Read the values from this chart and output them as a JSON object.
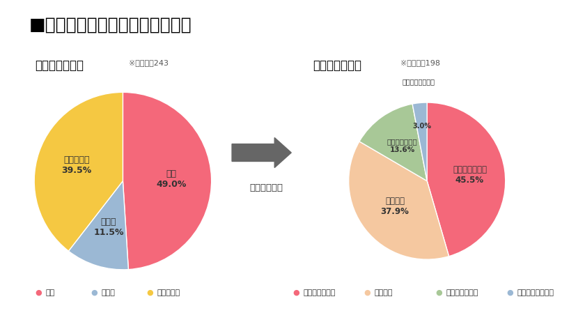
{
  "title": "■子どもを持ちたい？育てたい？",
  "title_fontsize": 18,
  "background_color": "#ffffff",
  "pre_title": "事前アンケート",
  "pre_subtitle": "※回答数：243",
  "pre_values": [
    49.0,
    11.5,
    39.5
  ],
  "pre_colors": [
    "#F4687A",
    "#9BB8D4",
    "#F5C842"
  ],
  "pre_text_labels": [
    "はい\n49.0%",
    "いいえ\n11.5%",
    "分からない\n39.5%"
  ],
  "pre_text_colors": [
    "#333333",
    "#333333",
    "#333333"
  ],
  "post_title": "事後アンケート",
  "post_subtitle": "※回答数：198",
  "post_values": [
    45.5,
    37.9,
    13.6,
    3.0
  ],
  "post_colors": [
    "#F4687A",
    "#F5C8A0",
    "#A8C897",
    "#9BB8D4"
  ],
  "post_text_labels": [
    "とてもそう思う\n45.5%",
    "そう思う\n37.9%",
    "あまり思わない\n13.6%",
    "まったく思わない\n3.0%"
  ],
  "post_text_colors": [
    "#333333",
    "#333333",
    "#333333",
    "#333333"
  ],
  "arrow_text": "実施後の変化",
  "arrow_color": "#666666",
  "legend1_labels": [
    "はい",
    "いいえ",
    "分からない"
  ],
  "legend1_colors": [
    "#F4687A",
    "#9BB8D4",
    "#F5C842"
  ],
  "legend2_labels": [
    "とてもそう思う",
    "そう思う",
    "あまり思わない",
    "まったく思わない"
  ],
  "legend2_colors": [
    "#F4687A",
    "#F5C8A0",
    "#A8C897",
    "#9BB8D4"
  ]
}
